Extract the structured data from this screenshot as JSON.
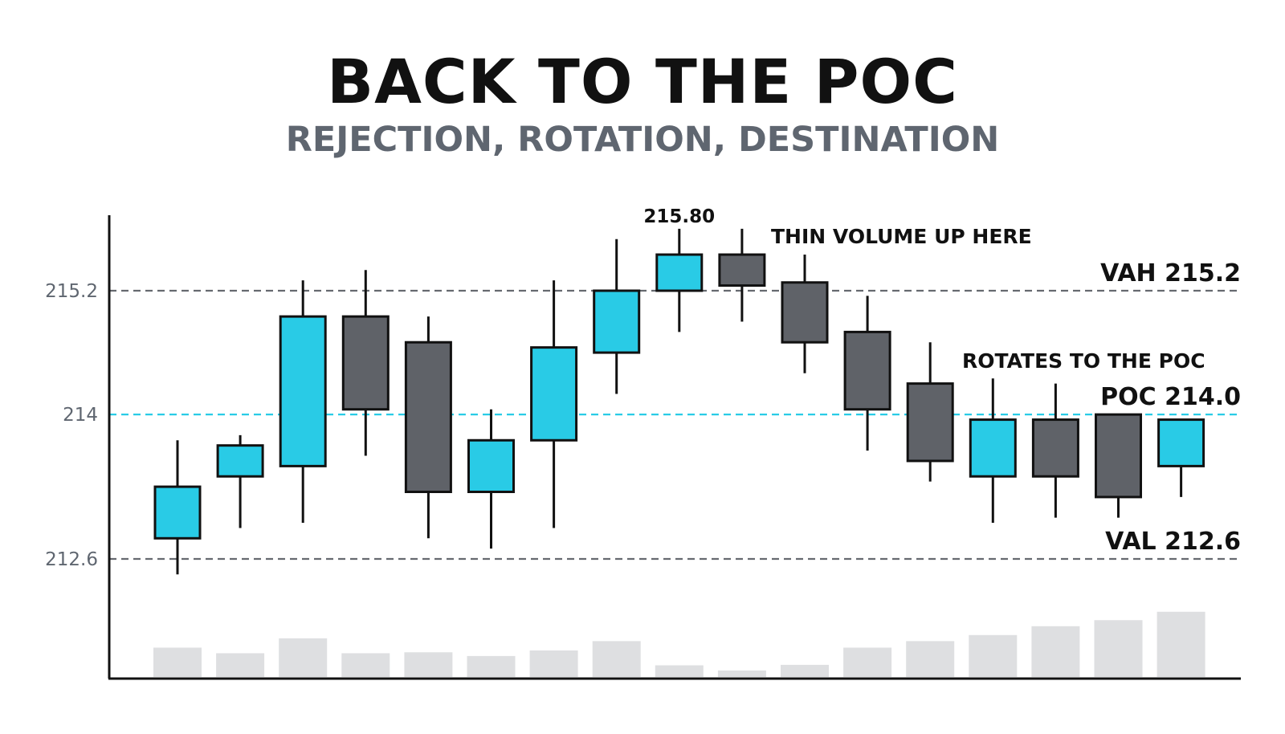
{
  "title": "BACK TO THE POC",
  "subtitle": "REJECTION, ROTATION, DESTINATION",
  "colors": {
    "bull": "#29cbe6",
    "bear": "#5f6268",
    "poc_line": "#29cbe6",
    "level_line": "#666a70",
    "volume": "#dedfe1",
    "axis": "#111111",
    "tick_text": "#5f6670"
  },
  "chart_data": {
    "type": "candlestick",
    "title": "BACK TO THE POC",
    "subtitle": "REJECTION, ROTATION, DESTINATION",
    "y_ticks": [
      "215.2",
      "214",
      "212.6"
    ],
    "ylim": [
      211.6,
      216.15
    ],
    "grid": false,
    "candles": [
      {
        "open": 212.8,
        "close": 213.3,
        "high": 213.75,
        "low": 212.45,
        "dir": "up"
      },
      {
        "open": 213.4,
        "close": 213.7,
        "high": 213.8,
        "low": 212.9,
        "dir": "up"
      },
      {
        "open": 213.5,
        "close": 214.95,
        "high": 215.3,
        "low": 212.95,
        "dir": "up"
      },
      {
        "open": 214.95,
        "close": 214.05,
        "high": 215.4,
        "low": 213.6,
        "dir": "down"
      },
      {
        "open": 214.7,
        "close": 213.25,
        "high": 214.95,
        "low": 212.8,
        "dir": "down"
      },
      {
        "open": 213.25,
        "close": 213.75,
        "high": 214.05,
        "low": 212.7,
        "dir": "up"
      },
      {
        "open": 213.75,
        "close": 214.65,
        "high": 215.3,
        "low": 212.9,
        "dir": "up"
      },
      {
        "open": 214.6,
        "close": 215.2,
        "high": 215.7,
        "low": 214.2,
        "dir": "up"
      },
      {
        "open": 215.2,
        "close": 215.55,
        "high": 215.8,
        "low": 214.8,
        "dir": "up"
      },
      {
        "open": 215.55,
        "close": 215.25,
        "high": 215.8,
        "low": 214.9,
        "dir": "down"
      },
      {
        "open": 215.28,
        "close": 214.7,
        "high": 215.55,
        "low": 214.4,
        "dir": "down"
      },
      {
        "open": 214.8,
        "close": 214.05,
        "high": 215.15,
        "low": 213.65,
        "dir": "down"
      },
      {
        "open": 214.3,
        "close": 213.55,
        "high": 214.7,
        "low": 213.35,
        "dir": "down"
      },
      {
        "open": 213.4,
        "close": 213.95,
        "high": 214.35,
        "low": 212.95,
        "dir": "up"
      },
      {
        "open": 213.95,
        "close": 213.4,
        "high": 214.3,
        "low": 213.0,
        "dir": "down"
      },
      {
        "open": 214.0,
        "close": 213.2,
        "high": 214.0,
        "low": 213.0,
        "dir": "down"
      },
      {
        "open": 213.5,
        "close": 213.95,
        "high": 213.95,
        "low": 213.2,
        "dir": "up"
      }
    ],
    "volume": [
      0.63,
      0.51,
      0.83,
      0.51,
      0.53,
      0.45,
      0.57,
      0.77,
      0.25,
      0.14,
      0.26,
      0.63,
      0.77,
      0.9,
      1.09,
      1.22,
      1.4
    ],
    "levels": [
      {
        "value": 215.2,
        "label": "VAH 215.2",
        "style": "dashed-gray"
      },
      {
        "value": 214.0,
        "label": "POC 214.0",
        "style": "dashed-cyan"
      },
      {
        "value": 212.6,
        "label": "VAL 212.6",
        "style": "dashed-gray"
      }
    ],
    "annotations": [
      {
        "text": "215.80",
        "candle_index": 8
      },
      {
        "text": "THIN VOLUME UP HERE",
        "candle_index": 9
      },
      {
        "text": "ROTATES TO THE POC",
        "candle_index": 14
      }
    ]
  }
}
